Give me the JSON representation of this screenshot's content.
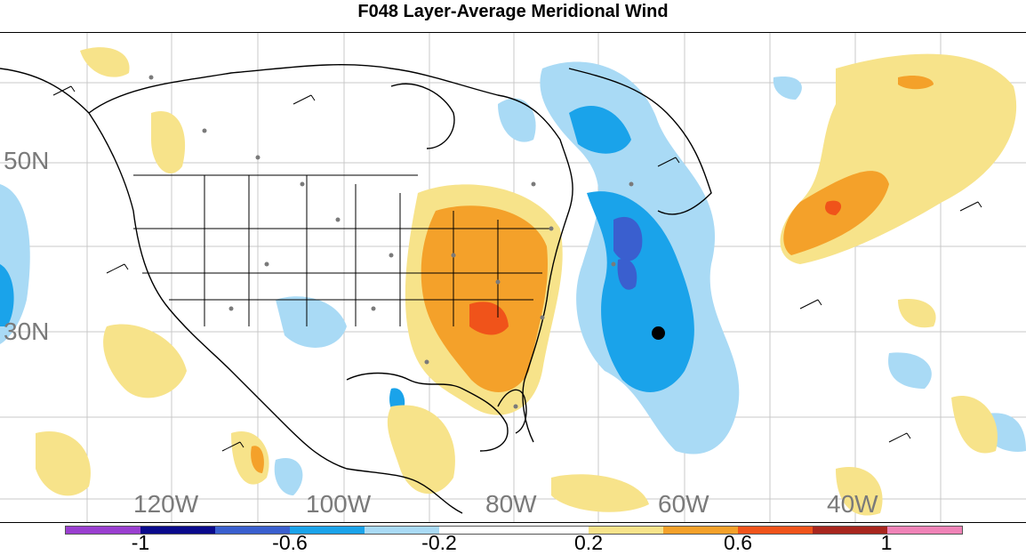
{
  "title": "F048 Layer-Average Meridional Wind",
  "latitude_labels": [
    "50N",
    "30N"
  ],
  "longitude_labels": [
    "120W",
    "100W",
    "80W",
    "60W",
    "40W"
  ],
  "colorbar": {
    "labels": [
      "-1",
      "-0.6",
      "-0.2",
      "0.2",
      "0.6",
      "1"
    ],
    "colors": [
      "#9a3fd0",
      "#0a0a8c",
      "#3a5fcf",
      "#1aa3ea",
      "#a9daf5",
      "#ffffff",
      "#ffffff",
      "#f7e38a",
      "#f4a12a",
      "#f0531a",
      "#a8261e",
      "#ef83b7"
    ]
  },
  "map_colors": {
    "land_outline": "#000000",
    "grid": "#c8c8c8",
    "negative_light": "#a9daf5",
    "negative_mid": "#1aa3ea",
    "negative_dark": "#3a5fcf",
    "positive_light": "#f7e38a",
    "positive_mid": "#f4a12a",
    "positive_dark": "#f0531a"
  },
  "storm_center": "marker-icon"
}
